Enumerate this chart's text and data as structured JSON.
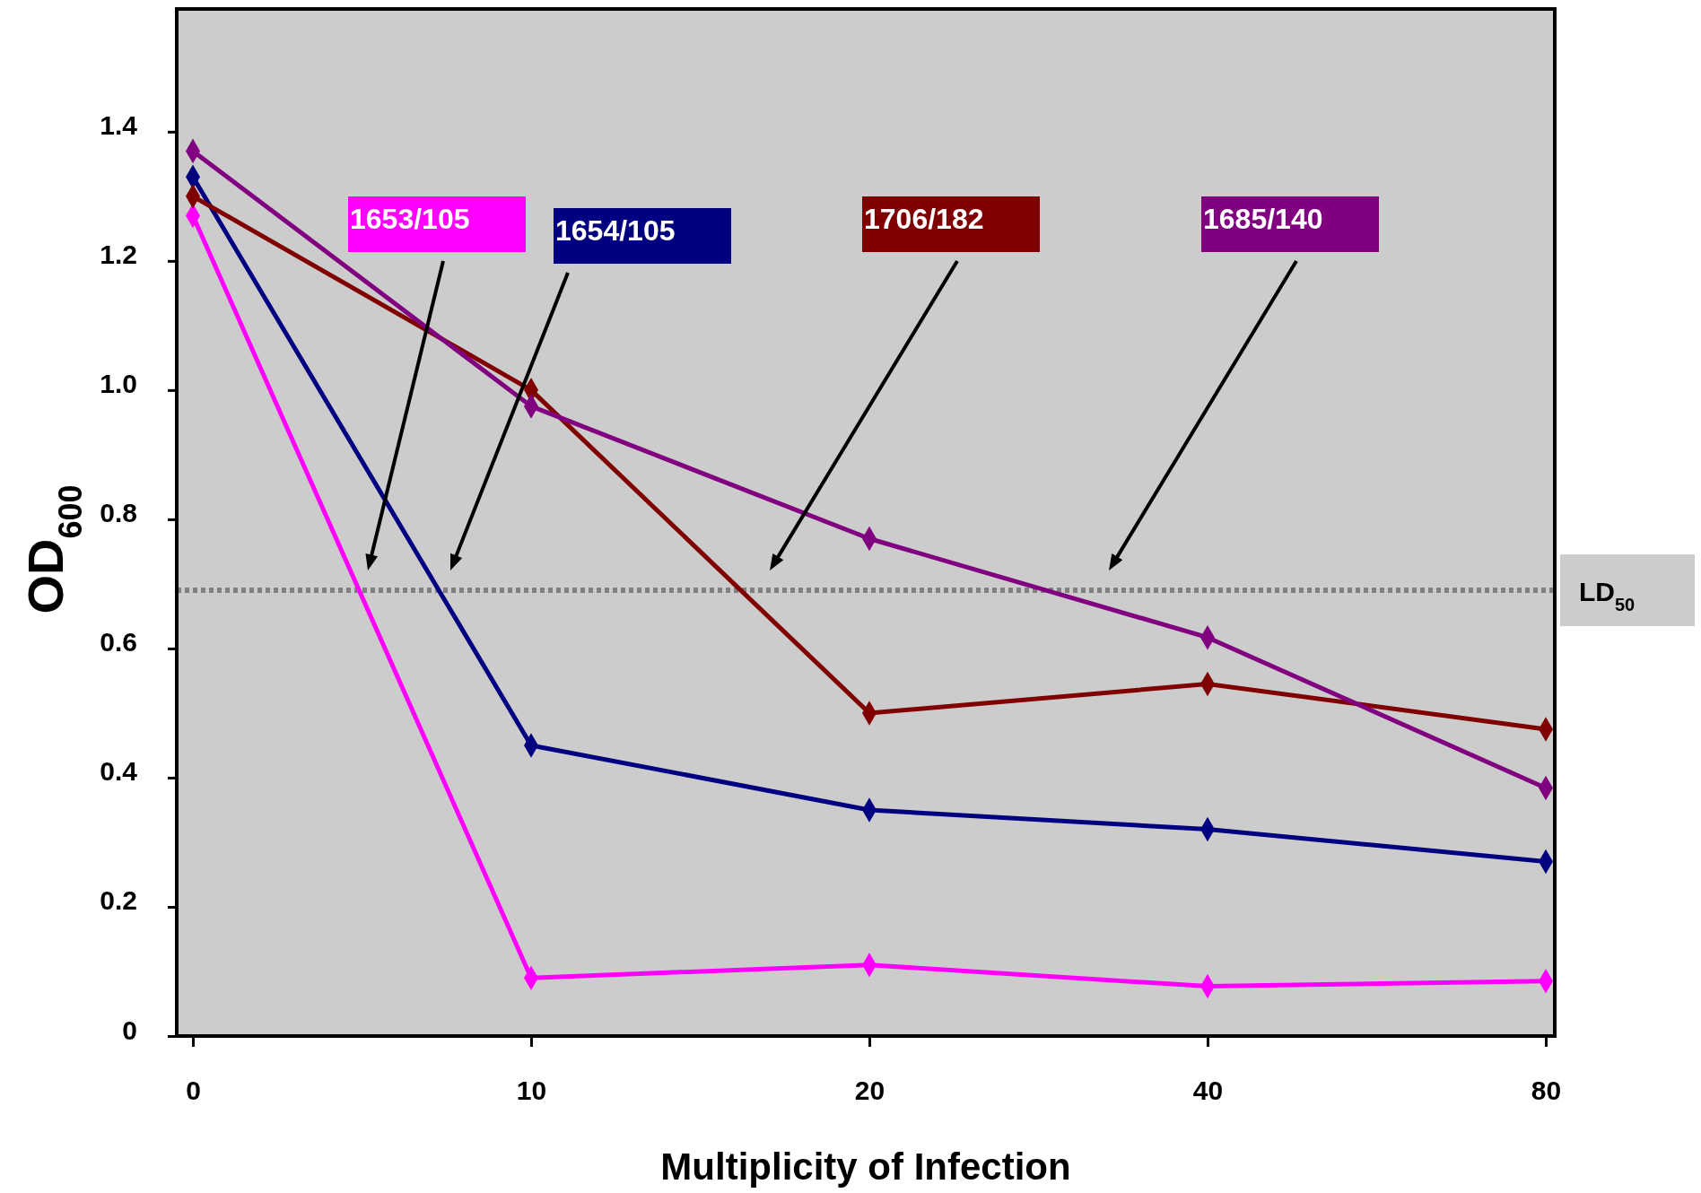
{
  "chart_data": {
    "type": "line",
    "xlabel": "Multiplicity of Infection",
    "ylabel": "OD$_{600}$",
    "categories": [
      "0",
      "10",
      "20",
      "40",
      "80"
    ],
    "series": [
      {
        "name": "1653/105",
        "color": "#ff00ff",
        "values": [
          1.27,
          0.09,
          0.11,
          0.077,
          0.085
        ]
      },
      {
        "name": "1654/105",
        "color": "#000080",
        "values": [
          1.33,
          0.45,
          0.35,
          0.32,
          0.27
        ]
      },
      {
        "name": "1706/182",
        "color": "#800000",
        "values": [
          1.3,
          1.0,
          0.5,
          0.545,
          0.475
        ]
      },
      {
        "name": "1685/140",
        "color": "#800080",
        "values": [
          1.37,
          0.975,
          0.77,
          0.617,
          0.384
        ]
      }
    ],
    "ylim": [
      0,
      1.59
    ],
    "yticks": [
      0,
      0.2,
      0.4,
      0.6,
      0.8,
      {
        "value": 1.0,
        "label": "1.0"
      },
      1.2,
      1.4
    ],
    "ref_lines": [
      {
        "axis": "y",
        "value": 0.69,
        "label": "LD$_{50}$",
        "color": "#808080",
        "line_style": "dotted"
      }
    ],
    "marker": "diamond",
    "line_style": "solid",
    "legend": "top",
    "grid": false
  }
}
